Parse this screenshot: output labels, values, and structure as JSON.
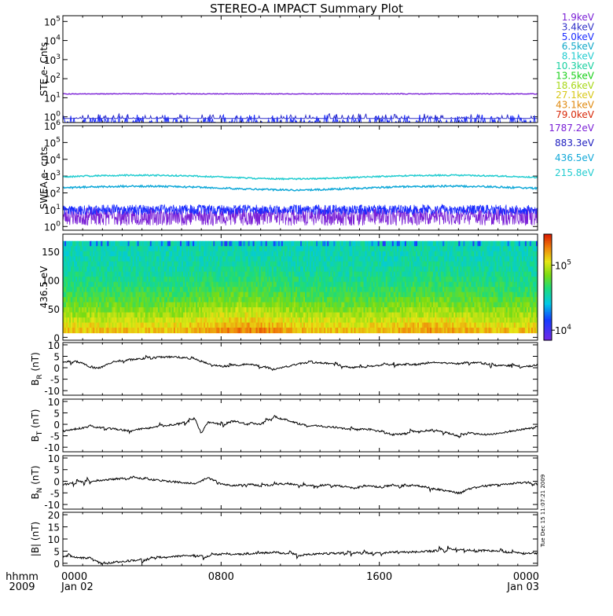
{
  "title": "STEREO-A IMPACT Summary Plot",
  "time_axis": {
    "row1_label": "hhmm",
    "row2_label": "2009",
    "ticks": [
      {
        "hhmm": "0000",
        "date": "Jan 02"
      },
      {
        "hhmm": "0800",
        "date": ""
      },
      {
        "hhmm": "1600",
        "date": ""
      },
      {
        "hhmm": "0000",
        "date": "Jan 03"
      }
    ]
  },
  "timestamp": "Tue Dec 15 11:07:21 2009",
  "colors": {
    "purple": "#7a1fd6",
    "indigo": "#3030c8",
    "blue": "#1a2bff",
    "teal": "#10a8c8",
    "cyan": "#22ccd0",
    "green": "#18d018",
    "yellowgreen": "#a8d818",
    "yellow": "#d8c818",
    "orange": "#e08a10",
    "red": "#d82808",
    "black": "#000000"
  },
  "chart_data": [
    {
      "id": "ste",
      "type": "line",
      "ylabel": "STE e- Cnts",
      "yscale": "log",
      "ylim": [
        0.5,
        200000
      ],
      "ytick_labels": [
        {
          "base": "10",
          "exp": "0"
        },
        {
          "base": "10",
          "exp": "1"
        },
        {
          "base": "10",
          "exp": "2"
        },
        {
          "base": "10",
          "exp": "3"
        },
        {
          "base": "10",
          "exp": "4"
        },
        {
          "base": "10",
          "exp": "5"
        }
      ],
      "legend": [
        {
          "label": "1.9keV",
          "color": "#7a1fd6"
        },
        {
          "label": "3.4keV",
          "color": "#3030c8"
        },
        {
          "label": "5.0keV",
          "color": "#1a2bff"
        },
        {
          "label": "6.5keV",
          "color": "#10a8c8"
        },
        {
          "label": "8.1keV",
          "color": "#22ccd0"
        },
        {
          "label": "10.3keV",
          "color": "#18d0a0"
        },
        {
          "label": "13.5keV",
          "color": "#18d018"
        },
        {
          "label": "18.6keV",
          "color": "#a8d818"
        },
        {
          "label": "27.1keV",
          "color": "#d8c818"
        },
        {
          "label": "43.1keV",
          "color": "#e08a10"
        },
        {
          "label": "79.0keV",
          "color": "#d82808"
        }
      ],
      "series_levels": [
        {
          "name": "1.9keV",
          "typical": 16
        },
        {
          "name": "3.4keV",
          "typical": 1
        },
        {
          "name": "5.0keV",
          "typical": 1
        }
      ]
    },
    {
      "id": "swea",
      "type": "line",
      "ylabel": "SWEA e- cnts",
      "yscale": "log",
      "ylim": [
        0.6,
        1000000
      ],
      "ytick_labels": [
        {
          "base": "10",
          "exp": "0"
        },
        {
          "base": "10",
          "exp": "1"
        },
        {
          "base": "10",
          "exp": "2"
        },
        {
          "base": "10",
          "exp": "3"
        },
        {
          "base": "10",
          "exp": "4"
        },
        {
          "base": "10",
          "exp": "5"
        },
        {
          "base": "10",
          "exp": "6"
        }
      ],
      "legend": [
        {
          "label": "1787.2eV",
          "color": "#7a1fd6"
        },
        {
          "label": "883.3eV",
          "color": "#2020c0"
        },
        {
          "label": "436.5eV",
          "color": "#10a8d8"
        },
        {
          "label": "215.8eV",
          "color": "#22ccd0"
        }
      ],
      "series_levels": [
        {
          "name": "215.8eV",
          "typical": 900
        },
        {
          "name": "436.5eV",
          "typical": 200
        },
        {
          "name": "883.3eV",
          "typical": 10
        },
        {
          "name": "1787.2eV",
          "typical": 4
        }
      ]
    },
    {
      "id": "pad",
      "type": "heatmap",
      "ylabel": "436.5 eV",
      "ylim": [
        -5,
        180
      ],
      "yticks": [
        0,
        50,
        100,
        150
      ],
      "ytick_labels": [
        "0",
        "50",
        "100",
        "150"
      ],
      "colorbar": {
        "scale": "log",
        "range": [
          7000,
          300000
        ],
        "tick_labels": [
          {
            "base": "10",
            "exp": "4"
          },
          {
            "base": "10",
            "exp": "5"
          }
        ]
      }
    },
    {
      "id": "br",
      "type": "line",
      "ylabel": "B",
      "ylabel_sub": "R",
      "ylabel_unit": "(nT)",
      "ylim": [
        -12,
        11
      ],
      "yticks": [
        -10,
        -5,
        0,
        5,
        10
      ],
      "ytick_labels": [
        "-10",
        "-5",
        "0",
        "5",
        "10"
      ],
      "keypoints": [
        [
          0,
          2.5
        ],
        [
          2,
          2.8
        ],
        [
          3,
          2
        ],
        [
          4,
          0.5
        ],
        [
          5,
          -0.5
        ],
        [
          6,
          0.5
        ],
        [
          7,
          1.8
        ],
        [
          8,
          2.8
        ],
        [
          10,
          3.5
        ],
        [
          12,
          4
        ],
        [
          14,
          4.5
        ],
        [
          16,
          4.8
        ],
        [
          18,
          4.5
        ],
        [
          20,
          3.8
        ],
        [
          22,
          1.8
        ],
        [
          24,
          0.5
        ],
        [
          26,
          1
        ],
        [
          28,
          1.5
        ],
        [
          30,
          0.8
        ],
        [
          32,
          -0.5
        ],
        [
          34,
          0.5
        ],
        [
          36,
          1.8
        ],
        [
          38,
          2.5
        ],
        [
          40,
          2
        ],
        [
          42,
          1
        ],
        [
          44,
          -0.2
        ],
        [
          46,
          0.2
        ],
        [
          48,
          1
        ],
        [
          50,
          1.5
        ],
        [
          52,
          1.3
        ],
        [
          54,
          1.5
        ],
        [
          56,
          2.5
        ],
        [
          58,
          2
        ],
        [
          60,
          1.8
        ],
        [
          62,
          2.5
        ],
        [
          64,
          2
        ],
        [
          66,
          0.8
        ],
        [
          68,
          1
        ],
        [
          70,
          0.5
        ],
        [
          72,
          1
        ]
      ]
    },
    {
      "id": "bt",
      "type": "line",
      "ylabel": "B",
      "ylabel_sub": "T",
      "ylabel_unit": "(nT)",
      "ylim": [
        -12,
        11
      ],
      "yticks": [
        -10,
        -5,
        0,
        5,
        10
      ],
      "ytick_labels": [
        "-10",
        "-5",
        "0",
        "5",
        "10"
      ],
      "keypoints": [
        [
          0,
          -3
        ],
        [
          2,
          -2
        ],
        [
          4,
          -1
        ],
        [
          6,
          -1.5
        ],
        [
          8,
          -2
        ],
        [
          10,
          -2.8
        ],
        [
          12,
          -2
        ],
        [
          14,
          -1
        ],
        [
          16,
          -0.5
        ],
        [
          18,
          0.5
        ],
        [
          20,
          2.5
        ],
        [
          21,
          -4
        ],
        [
          22,
          1
        ],
        [
          24,
          0
        ],
        [
          26,
          1.5
        ],
        [
          28,
          0
        ],
        [
          30,
          0
        ],
        [
          32,
          3
        ],
        [
          34,
          2
        ],
        [
          36,
          0
        ],
        [
          38,
          -0.5
        ],
        [
          40,
          -1
        ],
        [
          42,
          -1.5
        ],
        [
          44,
          -2.5
        ],
        [
          46,
          -2
        ],
        [
          48,
          -3
        ],
        [
          50,
          -4.5
        ],
        [
          52,
          -4
        ],
        [
          54,
          -3
        ],
        [
          56,
          -2.5
        ],
        [
          58,
          -3.5
        ],
        [
          60,
          -5
        ],
        [
          62,
          -4
        ],
        [
          64,
          -4.5
        ],
        [
          66,
          -4
        ],
        [
          68,
          -3
        ],
        [
          70,
          -2
        ],
        [
          72,
          -1.5
        ]
      ]
    },
    {
      "id": "bn",
      "type": "line",
      "ylabel": "B",
      "ylabel_sub": "N",
      "ylabel_unit": "(nT)",
      "ylim": [
        -12,
        11
      ],
      "yticks": [
        -10,
        -5,
        0,
        5,
        10
      ],
      "ytick_labels": [
        "-10",
        "-5",
        "0",
        "5",
        "10"
      ],
      "keypoints": [
        [
          0,
          -1.5
        ],
        [
          2,
          -0.5
        ],
        [
          4,
          0
        ],
        [
          6,
          0.5
        ],
        [
          8,
          1
        ],
        [
          10,
          1.5
        ],
        [
          12,
          1.2
        ],
        [
          14,
          0.5
        ],
        [
          16,
          0
        ],
        [
          18,
          -0.5
        ],
        [
          20,
          -1
        ],
        [
          22,
          1.5
        ],
        [
          24,
          -1
        ],
        [
          26,
          -2
        ],
        [
          28,
          -1
        ],
        [
          30,
          -2
        ],
        [
          32,
          -1.5
        ],
        [
          34,
          -1
        ],
        [
          36,
          -1.5
        ],
        [
          38,
          -2
        ],
        [
          40,
          -1.5
        ],
        [
          42,
          -2
        ],
        [
          44,
          -3
        ],
        [
          46,
          -2
        ],
        [
          48,
          -2.5
        ],
        [
          50,
          -1.5
        ],
        [
          52,
          -2
        ],
        [
          54,
          -2
        ],
        [
          56,
          -3
        ],
        [
          58,
          -4
        ],
        [
          60,
          -5
        ],
        [
          62,
          -3
        ],
        [
          64,
          -2
        ],
        [
          66,
          -1.5
        ],
        [
          68,
          -1
        ],
        [
          70,
          -0.5
        ],
        [
          72,
          -1
        ]
      ]
    },
    {
      "id": "bmag",
      "type": "line",
      "ylabel": "|B| (nT)",
      "ylim": [
        -1,
        21
      ],
      "yticks": [
        0,
        5,
        10,
        15,
        20
      ],
      "ytick_labels": [
        "0",
        "5",
        "10",
        "15",
        "20"
      ],
      "keypoints": [
        [
          0,
          3
        ],
        [
          2,
          2.5
        ],
        [
          4,
          2
        ],
        [
          5,
          0.8
        ],
        [
          6,
          -0.2
        ],
        [
          8,
          0.5
        ],
        [
          10,
          1
        ],
        [
          12,
          1.5
        ],
        [
          14,
          2
        ],
        [
          16,
          2.5
        ],
        [
          18,
          3
        ],
        [
          20,
          3.2
        ],
        [
          22,
          3
        ],
        [
          24,
          4
        ],
        [
          26,
          3.5
        ],
        [
          28,
          4
        ],
        [
          30,
          4.2
        ],
        [
          32,
          4.5
        ],
        [
          34,
          4
        ],
        [
          36,
          3.5
        ],
        [
          38,
          3.8
        ],
        [
          40,
          4
        ],
        [
          42,
          4.2
        ],
        [
          44,
          4.5
        ],
        [
          46,
          4
        ],
        [
          48,
          4.3
        ],
        [
          50,
          4.8
        ],
        [
          52,
          4.5
        ],
        [
          54,
          4.8
        ],
        [
          56,
          5
        ],
        [
          58,
          5.5
        ],
        [
          60,
          6
        ],
        [
          62,
          5.5
        ],
        [
          64,
          5.2
        ],
        [
          66,
          5
        ],
        [
          68,
          4.5
        ],
        [
          70,
          4
        ],
        [
          72,
          4.2
        ]
      ]
    }
  ]
}
